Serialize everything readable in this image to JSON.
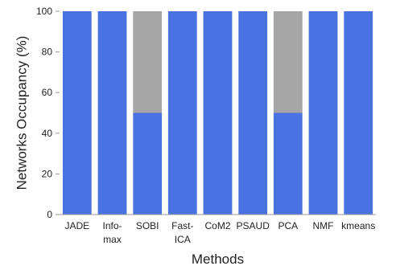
{
  "chart_data": {
    "type": "bar",
    "stacked": true,
    "xlabel": "Methods",
    "ylabel": "Networks Occupancy (%)",
    "ylim": [
      0,
      100
    ],
    "yticks": [
      0,
      20,
      40,
      60,
      80,
      100
    ],
    "grid": false,
    "categories": [
      [
        "JADE"
      ],
      [
        "Info-",
        "max"
      ],
      [
        "SOBI"
      ],
      [
        "Fast-",
        "ICA"
      ],
      [
        "CoM2"
      ],
      [
        "PSAUD"
      ],
      [
        "PCA"
      ],
      [
        "NMF"
      ],
      [
        "kmeans"
      ]
    ],
    "series": [
      {
        "color": "#4a72e0",
        "values": [
          100,
          100,
          50,
          100,
          100,
          100,
          50,
          100,
          100
        ]
      },
      {
        "color": "#a6a6a6",
        "values": [
          0,
          0,
          50,
          0,
          0,
          0,
          50,
          0,
          0
        ]
      }
    ]
  }
}
